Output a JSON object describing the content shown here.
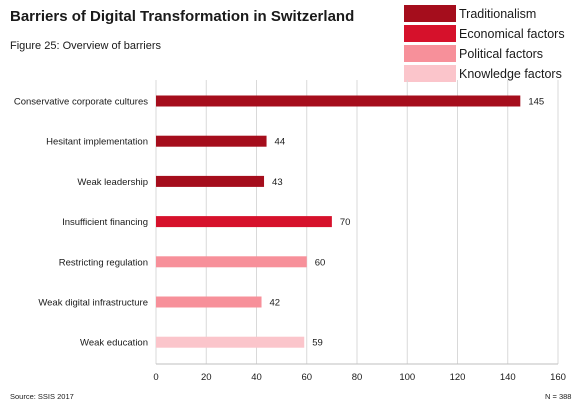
{
  "header": {
    "title": "Barriers of Digital Transformation in Switzerland",
    "figure_caption": "Figure 25: Overview of barriers"
  },
  "footer": {
    "source": "Source: SSIS 2017",
    "n_note": "N = 388"
  },
  "legend": [
    {
      "label": "Traditionalism",
      "color": "#a50d1c"
    },
    {
      "label": "Economical factors",
      "color": "#d6112b"
    },
    {
      "label": "Political factors",
      "color": "#f7909a"
    },
    {
      "label": "Knowledge factors",
      "color": "#fbc5cb"
    }
  ],
  "chart_data": {
    "type": "bar",
    "orientation": "horizontal",
    "title": "Barriers of Digital Transformation in Switzerland",
    "categories": [
      "Conservative corporate cultures",
      "Hesitant implementation",
      "Weak leadership",
      "Insufficient financing",
      "Restricting regulation",
      "Weak digital infrastructure",
      "Weak education"
    ],
    "values": [
      145,
      44,
      43,
      70,
      60,
      42,
      59
    ],
    "groups": [
      "Traditionalism",
      "Traditionalism",
      "Traditionalism",
      "Economical factors",
      "Political factors",
      "Political factors",
      "Knowledge factors"
    ],
    "xlim": [
      0,
      160
    ],
    "xticks": [
      0,
      20,
      40,
      60,
      80,
      100,
      120,
      140,
      160
    ],
    "grid": true,
    "legend_position": "top-right",
    "data_labels": true
  }
}
